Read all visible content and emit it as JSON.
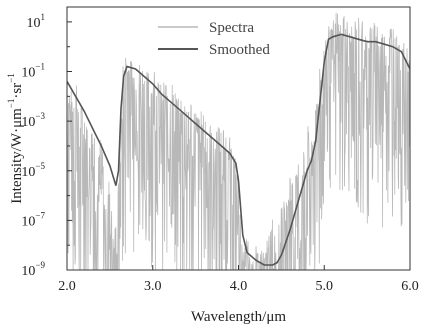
{
  "chart_data": {
    "type": "line",
    "xlabel": "Wavelength/μm",
    "ylabel_html": {
      "base": "Intensity/W·μm",
      "sup1": "−1",
      "mid": "·sr",
      "sup2": "−1"
    },
    "xlim": [
      2.0,
      6.0
    ],
    "ylim_log10": [
      -9,
      1.6
    ],
    "y_scale": "log",
    "x_ticks": [
      "2.0",
      "3.0",
      "4.0",
      "5.0",
      "6.0"
    ],
    "y_ticks": [
      {
        "base": "10",
        "exp": "1",
        "value": 1
      },
      {
        "base": "10",
        "exp": "−1",
        "value": -1
      },
      {
        "base": "10",
        "exp": "−3",
        "value": -3
      },
      {
        "base": "10",
        "exp": "−5",
        "value": -5
      },
      {
        "base": "10",
        "exp": "−7",
        "value": -7
      },
      {
        "base": "10",
        "exp": "−9",
        "value": -9
      }
    ],
    "legend_position": "top-center",
    "series": [
      {
        "name": "Spectra",
        "color": "#b8b8b8",
        "note": "noisy high-resolution spectrum",
        "x": [
          2.0,
          2.05,
          2.1,
          2.15,
          2.2,
          2.25,
          2.3,
          2.35,
          2.4,
          2.45,
          2.5,
          2.55,
          2.6,
          2.62,
          2.65,
          2.7,
          2.75,
          2.8,
          2.9,
          3.0,
          3.1,
          3.2,
          3.3,
          3.4,
          3.5,
          3.6,
          3.7,
          3.8,
          3.9,
          3.95,
          4.0,
          4.05,
          4.1,
          4.15,
          4.2,
          4.25,
          4.3,
          4.35,
          4.4,
          4.45,
          4.5,
          4.55,
          4.6,
          4.65,
          4.7,
          4.75,
          4.8,
          4.85,
          4.9,
          4.95,
          5.0,
          5.05,
          5.1,
          5.15,
          5.2,
          5.25,
          5.3,
          5.4,
          5.5,
          5.6,
          5.7,
          5.8,
          5.9,
          6.0
        ],
        "y_log10": [
          -1.2,
          -2.5,
          -1.6,
          -3.5,
          -2.2,
          -4.5,
          -3.2,
          -5.5,
          -4.0,
          -7.0,
          -5.5,
          -8.5,
          -6.0,
          -4.0,
          -1.5,
          -0.6,
          -1.3,
          -0.9,
          -1.6,
          -1.5,
          -2.2,
          -2.0,
          -2.8,
          -2.6,
          -3.2,
          -3.3,
          -3.8,
          -3.9,
          -4.3,
          -5.0,
          -5.8,
          -9.0,
          -8.2,
          -9.0,
          -8.6,
          -8.8,
          -9.0,
          -8.2,
          -7.6,
          -8.3,
          -6.5,
          -7.2,
          -5.6,
          -6.2,
          -4.9,
          -5.3,
          -3.5,
          -4.6,
          -2.8,
          -1.5,
          -0.5,
          0.6,
          0.3,
          0.9,
          0.2,
          0.8,
          0.1,
          0.6,
          0.0,
          0.4,
          -0.1,
          0.2,
          -0.3,
          -0.8
        ]
      },
      {
        "name": "Smoothed",
        "color": "#555555",
        "x": [
          2.0,
          2.1,
          2.2,
          2.3,
          2.4,
          2.5,
          2.57,
          2.6,
          2.63,
          2.66,
          2.7,
          2.8,
          2.9,
          3.0,
          3.1,
          3.2,
          3.3,
          3.4,
          3.5,
          3.6,
          3.7,
          3.8,
          3.9,
          3.97,
          4.0,
          4.05,
          4.1,
          4.2,
          4.3,
          4.4,
          4.45,
          4.5,
          4.6,
          4.7,
          4.8,
          4.85,
          4.9,
          4.95,
          5.0,
          5.05,
          5.1,
          5.2,
          5.3,
          5.4,
          5.5,
          5.6,
          5.7,
          5.8,
          5.9,
          6.0
        ],
        "y_log10": [
          -1.4,
          -2.0,
          -2.6,
          -3.3,
          -4.0,
          -4.8,
          -5.6,
          -5.0,
          -2.5,
          -1.2,
          -0.8,
          -0.9,
          -1.2,
          -1.5,
          -1.9,
          -2.2,
          -2.5,
          -2.8,
          -3.1,
          -3.4,
          -3.7,
          -4.0,
          -4.3,
          -4.7,
          -5.4,
          -7.6,
          -8.3,
          -8.6,
          -8.8,
          -8.8,
          -8.7,
          -8.4,
          -7.4,
          -6.2,
          -5.0,
          -4.6,
          -3.8,
          -2.2,
          -0.6,
          0.3,
          0.4,
          0.5,
          0.4,
          0.3,
          0.2,
          0.2,
          0.1,
          0.0,
          -0.2,
          -0.9
        ]
      }
    ]
  }
}
